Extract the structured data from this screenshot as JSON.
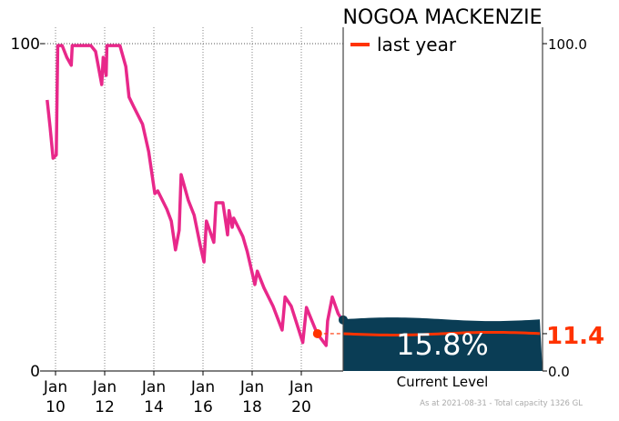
{
  "chart_data": {
    "type": "line",
    "title": "NOGOA MACKENZIE",
    "ylim": [
      0,
      100
    ],
    "xlim": [
      2009.55,
      2021.7
    ],
    "grid": true,
    "legend": {
      "placement": "top-right",
      "entries": [
        "last year"
      ]
    },
    "left_ticks": [
      "0",
      "100"
    ],
    "right_ticks": [
      "0.0",
      "100.0"
    ],
    "x_ticks": [
      {
        "year": 2010,
        "month": "Jan",
        "label": "10"
      },
      {
        "year": 2012,
        "month": "Jan",
        "label": "12"
      },
      {
        "year": 2014,
        "month": "Jan",
        "label": "14"
      },
      {
        "year": 2016,
        "month": "Jan",
        "label": "16"
      },
      {
        "year": 2018,
        "month": "Jan",
        "label": "18"
      },
      {
        "year": 2020,
        "month": "Jan",
        "label": "20"
      }
    ],
    "series": [
      {
        "color": "#e8288a",
        "x": [
          2009.66,
          2009.78,
          2009.9,
          2010.03,
          2010.09,
          2010.27,
          2010.46,
          2010.64,
          2010.68,
          2011.44,
          2011.63,
          2011.88,
          2011.94,
          2012.06,
          2012.09,
          2012.62,
          2012.86,
          2012.99,
          2013.17,
          2013.54,
          2013.79,
          2014.04,
          2014.16,
          2014.53,
          2014.71,
          2014.88,
          2015.03,
          2015.11,
          2015.4,
          2015.64,
          2015.89,
          2016.04,
          2016.14,
          2016.44,
          2016.53,
          2016.81,
          2017.0,
          2017.06,
          2017.19,
          2017.25,
          2017.62,
          2017.8,
          2018.11,
          2018.21,
          2018.48,
          2018.85,
          2019.22,
          2019.34,
          2019.59,
          2020.06,
          2020.21,
          2020.64,
          2021.01,
          2021.07,
          2021.26,
          2021.5,
          2021.66
        ],
        "y": [
          82.8,
          74.4,
          65,
          66,
          99.4,
          99.4,
          95.8,
          93.4,
          99.4,
          99.4,
          97.6,
          87.5,
          95.8,
          90.3,
          99.4,
          99.4,
          93,
          83.7,
          80.9,
          75.4,
          67,
          54.2,
          55,
          49.4,
          45.8,
          37,
          43,
          60,
          52.2,
          47.6,
          38.3,
          33.3,
          45.8,
          39.3,
          51.4,
          51.4,
          41.6,
          49,
          43.9,
          46.7,
          41.1,
          36.5,
          26.4,
          30.5,
          25.4,
          19.8,
          12.5,
          22.6,
          19.8,
          8.7,
          19.4,
          11.5,
          7.8,
          15.3,
          22.6,
          17.5,
          15.6
        ]
      }
    ],
    "last_year": {
      "label": "last year",
      "x": 2020.66,
      "value": 11.4,
      "value_label": "11.4",
      "color": "#ff3300"
    },
    "current": {
      "value": 15.8,
      "value_label": "15.8%",
      "caption": "Current Level",
      "color": "#0a3d55"
    },
    "footer": "As at 2021-08-31 - Total capacity 1326 GL"
  }
}
